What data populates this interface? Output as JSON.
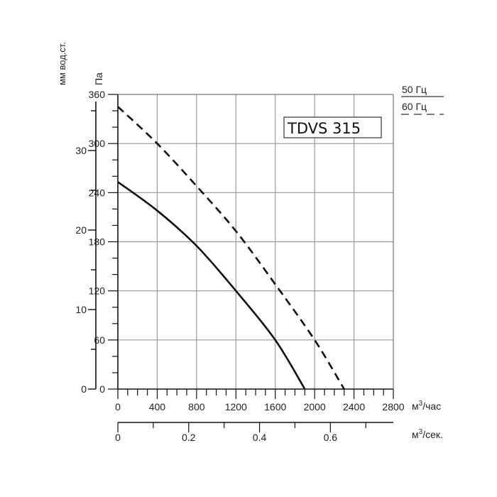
{
  "chart_data": {
    "type": "line",
    "title": "TDVS 315",
    "xlabel": "м³/час",
    "x2label": "м³/сек.",
    "ylabel": "Па",
    "y2label": "мм вод.ст.",
    "xlim": [
      0,
      2800
    ],
    "ylim": [
      0,
      360
    ],
    "x_ticks": [
      0,
      400,
      800,
      1200,
      1600,
      2000,
      2400,
      2800
    ],
    "x2_ticks": [
      0,
      0.2,
      0.4,
      0.6
    ],
    "y_ticks": [
      0,
      60,
      120,
      180,
      240,
      300,
      360
    ],
    "y2_ticks": [
      0,
      10,
      20,
      30
    ],
    "grid": true,
    "legend_position": "top-right",
    "series": [
      {
        "name": "50 Гц",
        "style": "solid",
        "x": [
          0,
          400,
          800,
          1200,
          1600,
          1900
        ],
        "values": [
          253,
          218,
          175,
          120,
          60,
          0
        ]
      },
      {
        "name": "60 Гц",
        "style": "dashed",
        "x": [
          0,
          400,
          800,
          1200,
          1600,
          2000,
          2300
        ],
        "values": [
          345,
          300,
          248,
          193,
          128,
          60,
          0
        ]
      }
    ]
  },
  "labels": {
    "title": "TDVS 315",
    "y_pa": "Па",
    "y_mm": "мм вод.ст.",
    "x_m3h": "м³/час",
    "x_m3s": "м³/сек.",
    "legend_50": "50 Гц",
    "legend_60": "60 Гц",
    "x_ticks": [
      "0",
      "400",
      "800",
      "1200",
      "1600",
      "2000",
      "2400",
      "2800"
    ],
    "x2_ticks": [
      "0",
      "0.2",
      "0.4",
      "0.6"
    ],
    "y_ticks": [
      "0",
      "60",
      "120",
      "180",
      "240",
      "300",
      "360"
    ],
    "y2_ticks": [
      "0",
      "10",
      "20",
      "30"
    ]
  }
}
